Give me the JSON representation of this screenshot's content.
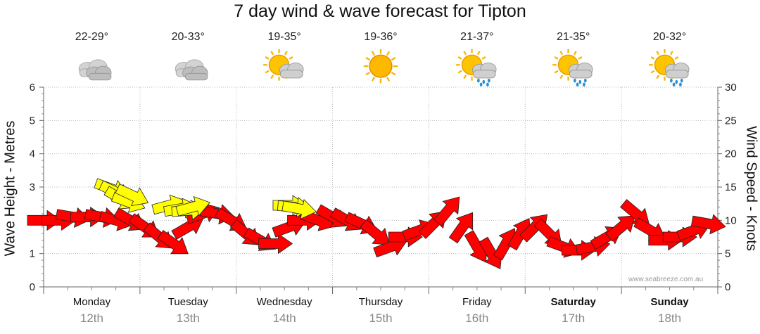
{
  "chart_data": {
    "type": "line",
    "title": "7 day wind & wave forecast for Tipton",
    "ylabel_left": "Wave Height - Metres",
    "ylabel_right": "Wind Speed - Knots",
    "ylim_left": [
      0,
      6
    ],
    "ylim_right": [
      0,
      30
    ],
    "yticks_left": [
      "0",
      "1",
      "2",
      "3",
      "4",
      "5",
      "6"
    ],
    "yticks_right": [
      "0",
      "5",
      "10",
      "15",
      "20",
      "25",
      "30"
    ],
    "days": [
      {
        "name": "Monday",
        "date": "12th",
        "temp": "22-29°",
        "icon": "cloudy-icon",
        "bold": false
      },
      {
        "name": "Tuesday",
        "date": "13th",
        "temp": "20-33°",
        "icon": "cloudy-icon",
        "bold": false
      },
      {
        "name": "Wednesday",
        "date": "14th",
        "temp": "19-35°",
        "icon": "partly-cloudy-icon",
        "bold": false
      },
      {
        "name": "Thursday",
        "date": "15th",
        "temp": "19-36°",
        "icon": "sunny-icon",
        "bold": false
      },
      {
        "name": "Friday",
        "date": "16th",
        "temp": "21-37°",
        "icon": "sun-showers-icon",
        "bold": false
      },
      {
        "name": "Saturday",
        "date": "17th",
        "temp": "21-35°",
        "icon": "sun-showers-icon",
        "bold": true
      },
      {
        "name": "Sunday",
        "date": "18th",
        "temp": "20-32°",
        "icon": "sun-showers-icon",
        "bold": true
      }
    ],
    "wind_series": {
      "name": "Wind speed (knots)",
      "x_day": [
        0.0,
        0.15,
        0.3,
        0.45,
        0.6,
        0.75,
        0.9,
        1.05,
        1.2,
        1.35,
        1.5,
        1.65,
        1.8,
        1.95,
        2.1,
        2.25,
        2.4,
        2.55,
        2.7,
        2.85,
        3.0,
        3.15,
        3.3,
        3.45,
        3.6,
        3.75,
        3.9,
        4.05,
        4.2,
        4.35,
        4.5,
        4.65,
        4.8,
        4.95,
        5.1,
        5.25,
        5.4,
        5.55,
        5.7,
        5.85,
        6.0,
        6.15,
        6.3,
        6.45,
        6.6,
        6.75,
        6.9
      ],
      "knots": [
        10,
        10,
        10.5,
        10.5,
        10.5,
        10,
        10,
        9,
        7.5,
        6.5,
        9,
        11,
        11,
        10,
        8,
        7,
        6.5,
        9,
        10,
        10,
        10.5,
        10,
        9.5,
        8,
        6,
        7.5,
        8.5,
        9.5,
        11.5,
        9,
        6,
        5,
        6.5,
        8,
        9,
        8,
        6,
        5.5,
        6,
        7.5,
        9,
        11,
        8.5,
        7,
        7.5,
        8.5,
        9.5
      ],
      "rotation_deg": [
        0,
        0,
        10,
        0,
        10,
        15,
        30,
        35,
        40,
        35,
        -30,
        -20,
        10,
        30,
        40,
        30,
        0,
        -20,
        0,
        20,
        30,
        30,
        25,
        40,
        -20,
        0,
        -20,
        -45,
        -50,
        -55,
        60,
        60,
        -60,
        -60,
        -45,
        45,
        20,
        0,
        -10,
        -30,
        -40,
        40,
        30,
        0,
        0,
        -20,
        10
      ]
    },
    "swell_series": {
      "name": "Wave height (metres)",
      "x_day": [
        0.7,
        0.75,
        0.8,
        0.88,
        0.92,
        1.3,
        1.42,
        1.5,
        1.55,
        2.55,
        2.6,
        2.65
      ],
      "metres": [
        2.95,
        2.85,
        2.65,
        2.55,
        2.75,
        2.45,
        2.35,
        2.3,
        2.4,
        2.45,
        2.4,
        2.35
      ],
      "rotation_deg": [
        20,
        25,
        30,
        20,
        25,
        -15,
        -10,
        -5,
        -15,
        0,
        5,
        10
      ]
    }
  },
  "watermark": "www.seabreeze.com.au",
  "colors": {
    "wind_fill": "#ff0000",
    "swell_fill": "#ffff00",
    "grid": "#bbbbbb",
    "date_text": "#888888"
  }
}
